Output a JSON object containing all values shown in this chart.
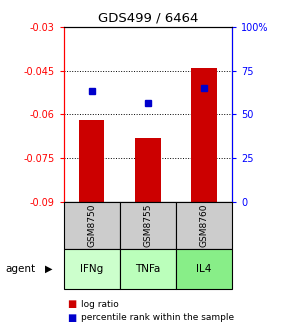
{
  "title": "GDS499 / 6464",
  "bar_positions": [
    1,
    2,
    3
  ],
  "bar_values": [
    -0.062,
    -0.068,
    -0.044
  ],
  "percentile_values": [
    -0.052,
    -0.056,
    -0.051
  ],
  "categories": [
    "IFNg",
    "TNFa",
    "IL4"
  ],
  "sample_labels": [
    "GSM8750",
    "GSM8755",
    "GSM8760"
  ],
  "ylim_left": [
    -0.09,
    -0.03
  ],
  "yticks_left": [
    -0.09,
    -0.075,
    -0.06,
    -0.045,
    -0.03
  ],
  "ytick_labels_left": [
    "-0.09",
    "-0.075",
    "-0.06",
    "-0.045",
    "-0.03"
  ],
  "ylim_right": [
    0,
    100
  ],
  "yticks_right": [
    0,
    25,
    50,
    75,
    100
  ],
  "ytick_labels_right": [
    "0",
    "25",
    "50",
    "75",
    "100%"
  ],
  "bar_color": "#cc0000",
  "dot_color": "#0000cc",
  "gsm_bg_color": "#cccccc",
  "agent_colors": [
    "#ccffcc",
    "#bbffbb",
    "#88ee88"
  ],
  "legend_bar_label": "log ratio",
  "legend_dot_label": "percentile rank within the sample",
  "grid_yticks": [
    -0.045,
    -0.06,
    -0.075
  ],
  "bar_width": 0.45,
  "figsize": [
    2.9,
    3.36
  ],
  "dpi": 100
}
